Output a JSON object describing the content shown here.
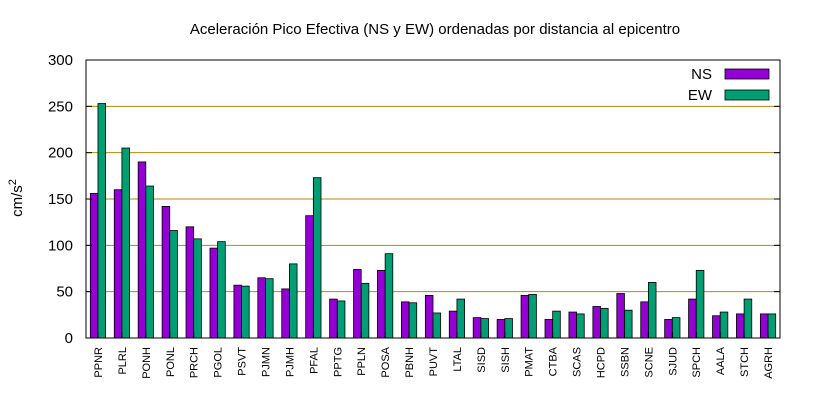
{
  "chart_data": {
    "type": "bar",
    "title": "Aceleración Pico Efectiva (NS y EW) ordenadas por distancia al epicentro",
    "xlabel": "",
    "ylabel": "cm/s",
    "ylabel_sup": "2",
    "ylim": [
      0,
      300
    ],
    "yticks": [
      0,
      50,
      100,
      150,
      200,
      250,
      300
    ],
    "grid": "horizontal",
    "legend_position": "top-right",
    "categories": [
      "PPNR",
      "PLRL",
      "PONH",
      "PONL",
      "PRCH",
      "PGOL",
      "PSVT",
      "PJMN",
      "PJMH",
      "PFAL",
      "PPTG",
      "PPLN",
      "POSA",
      "PBNH",
      "PUVT",
      "LTAL",
      "SISD",
      "SISH",
      "PMAT",
      "CTBA",
      "SCAS",
      "HCPD",
      "SSBN",
      "SCNE",
      "SJUD",
      "SPCH",
      "AALA",
      "STCH",
      "AGRH"
    ],
    "series": [
      {
        "name": "NS",
        "color": "#9400d3",
        "values": [
          156,
          160,
          190,
          142,
          120,
          97,
          57,
          65,
          53,
          132,
          42,
          74,
          73,
          39,
          46,
          29,
          22,
          20,
          46,
          20,
          28,
          34,
          48,
          39,
          20,
          42,
          24,
          26,
          26
        ]
      },
      {
        "name": "EW",
        "color": "#009e73",
        "values": [
          253,
          205,
          164,
          116,
          107,
          104,
          56,
          64,
          80,
          173,
          40,
          59,
          91,
          38,
          27,
          42,
          21,
          21,
          47,
          29,
          26,
          32,
          30,
          60,
          22,
          73,
          28,
          42,
          26
        ]
      }
    ]
  }
}
